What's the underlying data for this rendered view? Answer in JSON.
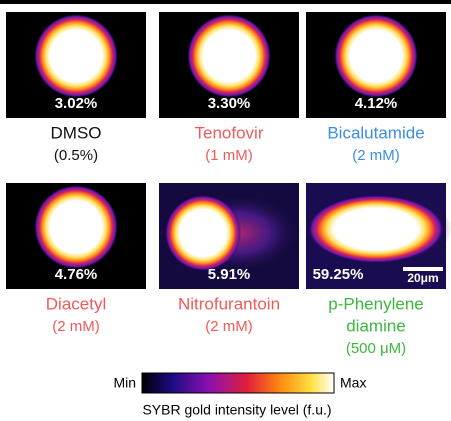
{
  "panels": [
    {
      "percent": "3.02%",
      "name_lines": [
        "DMSO"
      ],
      "concentration": "(0.5%)",
      "color": "#111111"
    },
    {
      "percent": "3.30%",
      "name_lines": [
        "Tenofovir"
      ],
      "concentration": "(1 mM)",
      "color": "#f05a5a"
    },
    {
      "percent": "4.12%",
      "name_lines": [
        "Bicalutamide"
      ],
      "concentration": "(2 mM)",
      "color": "#3a8ee6"
    },
    {
      "percent": "4.76%",
      "name_lines": [
        "Diacetyl"
      ],
      "concentration": "(2 mM)",
      "color": "#f05a5a"
    },
    {
      "percent": "5.91%",
      "name_lines": [
        "Nitrofurantoin"
      ],
      "concentration": "(2 mM)",
      "color": "#f05a5a"
    },
    {
      "percent": "59.25%",
      "name_lines": [
        "p-Phenylene",
        "diamine"
      ],
      "concentration": "(500 μM)",
      "color": "#3cb83c"
    }
  ],
  "scale_bar": "20μm",
  "colorbar": {
    "min_label": "Min",
    "max_label": "Max",
    "caption": "SYBR gold intensity level (f.u.)"
  }
}
